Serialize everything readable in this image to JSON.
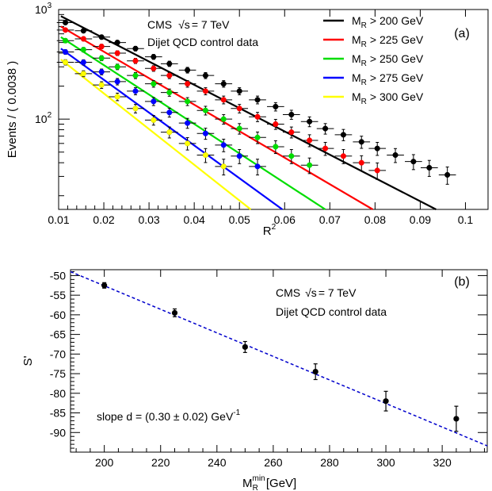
{
  "chart_data": [
    {
      "panel_label": "(a)",
      "type": "scatter",
      "xlabel": "R",
      "xlabel_sup": "2",
      "ylabel": "Events / ( 0.0038 )",
      "xlim": [
        0.01,
        0.105
      ],
      "ylim": [
        15,
        1000
      ],
      "yscale": "log",
      "x_ticks": [
        0.01,
        0.02,
        0.03,
        0.04,
        0.05,
        0.06,
        0.07,
        0.08,
        0.09,
        0.1
      ],
      "y_tick_labels": [
        {
          "base": "10",
          "exp": "2",
          "value": 100
        },
        {
          "base": "10",
          "exp": "3",
          "value": 1000
        }
      ],
      "annotation_text": {
        "experiment": "CMS",
        "sqrt": "√s",
        "energy": "= 7 TeV",
        "line2": "Dijet QCD control data"
      },
      "legend_position": "top-right",
      "series": [
        {
          "name": "M",
          "name_sub": "R",
          "name_rest": "> 200 GeV",
          "color": "#000000",
          "x": [
            0.0115,
            0.0155,
            0.0195,
            0.023,
            0.027,
            0.031,
            0.0345,
            0.0385,
            0.0425,
            0.0465,
            0.05,
            0.054,
            0.058,
            0.0615,
            0.0655,
            0.069,
            0.073,
            0.077,
            0.0805,
            0.0845,
            0.0885,
            0.092,
            0.096
          ],
          "y": [
            760,
            640,
            560,
            500,
            440,
            370,
            320,
            280,
            250,
            210,
            180,
            150,
            130,
            110,
            95,
            82,
            72,
            62,
            54,
            47,
            41,
            36,
            31
          ],
          "line": {
            "x": [
              0.0105,
              0.0935
            ],
            "y": [
              870,
              15
            ]
          }
        },
        {
          "name": "M",
          "name_sub": "R",
          "name_rest": "> 225 GeV",
          "color": "#ff0000",
          "x": [
            0.0115,
            0.0155,
            0.0195,
            0.023,
            0.027,
            0.031,
            0.0345,
            0.0385,
            0.0425,
            0.0465,
            0.05,
            0.054,
            0.058,
            0.0615,
            0.0655,
            0.069,
            0.073,
            0.077,
            0.0805
          ],
          "y": [
            650,
            540,
            460,
            400,
            340,
            290,
            250,
            210,
            180,
            150,
            125,
            105,
            90,
            76,
            64,
            54,
            46,
            40,
            34
          ],
          "line": {
            "x": [
              0.0105,
              0.0795
            ],
            "y": [
              700,
              15
            ]
          }
        },
        {
          "name": "M",
          "name_sub": "R",
          "name_rest": "> 250 GeV",
          "color": "#00dd00",
          "x": [
            0.0115,
            0.0155,
            0.0195,
            0.023,
            0.027,
            0.031,
            0.0345,
            0.0385,
            0.0425,
            0.0465,
            0.05,
            0.054,
            0.058,
            0.0615,
            0.0655
          ],
          "y": [
            520,
            430,
            360,
            300,
            250,
            210,
            175,
            145,
            120,
            100,
            82,
            68,
            56,
            46,
            38
          ],
          "line": {
            "x": [
              0.0105,
              0.069
            ],
            "y": [
              560,
              15
            ]
          }
        },
        {
          "name": "M",
          "name_sub": "R",
          "name_rest": "> 275 GeV",
          "color": "#0000ff",
          "x": [
            0.0115,
            0.0155,
            0.0195,
            0.023,
            0.027,
            0.031,
            0.0345,
            0.0385,
            0.0425,
            0.0465,
            0.05,
            0.054
          ],
          "y": [
            410,
            330,
            270,
            220,
            180,
            145,
            115,
            92,
            74,
            58,
            46,
            37
          ],
          "line": {
            "x": [
              0.0105,
              0.0595
            ],
            "y": [
              440,
              15
            ]
          }
        },
        {
          "name": "M",
          "name_sub": "R",
          "name_rest": "> 300 GeV",
          "color": "#ffff00",
          "x": [
            0.0115,
            0.0155,
            0.0195,
            0.023,
            0.027,
            0.031,
            0.0345,
            0.0385,
            0.0425,
            0.0465
          ],
          "y": [
            330,
            260,
            205,
            160,
            125,
            98,
            76,
            60,
            47,
            37
          ],
          "line": {
            "x": [
              0.0105,
              0.0525
            ],
            "y": [
              350,
              15
            ]
          }
        }
      ]
    },
    {
      "panel_label": "(b)",
      "type": "scatter",
      "xlabel": "M",
      "xlabel_sub": "R",
      "xlabel_sup": "min",
      "xlabel_rest": "[GeV]",
      "ylabel": "S'",
      "xlim": [
        188,
        336
      ],
      "ylim": [
        -95,
        -48.5
      ],
      "x_ticks": [
        200,
        220,
        240,
        260,
        280,
        300,
        320
      ],
      "y_ticks": [
        -50,
        -55,
        -60,
        -65,
        -70,
        -75,
        -80,
        -85,
        -90
      ],
      "annotation_text": {
        "experiment": "CMS",
        "sqrt": "√s",
        "energy": "= 7 TeV",
        "line2": "Dijet QCD control data"
      },
      "slope_text": {
        "main": "slope d = (0.30 ± 0.02) GeV",
        "sup": "-1"
      },
      "series": [
        {
          "name": "",
          "color": "#000000",
          "x": [
            200,
            225,
            250,
            275,
            300,
            325
          ],
          "y": [
            -52.5,
            -59.5,
            -68.2,
            -74.5,
            -82.0,
            -86.5
          ],
          "yerr": [
            0.7,
            1.0,
            1.4,
            2.0,
            2.5,
            3.2
          ]
        }
      ],
      "fit_line": {
        "color": "#0000cc",
        "x": [
          188,
          336
        ],
        "y": [
          -49.0,
          -93.4
        ]
      }
    }
  ]
}
